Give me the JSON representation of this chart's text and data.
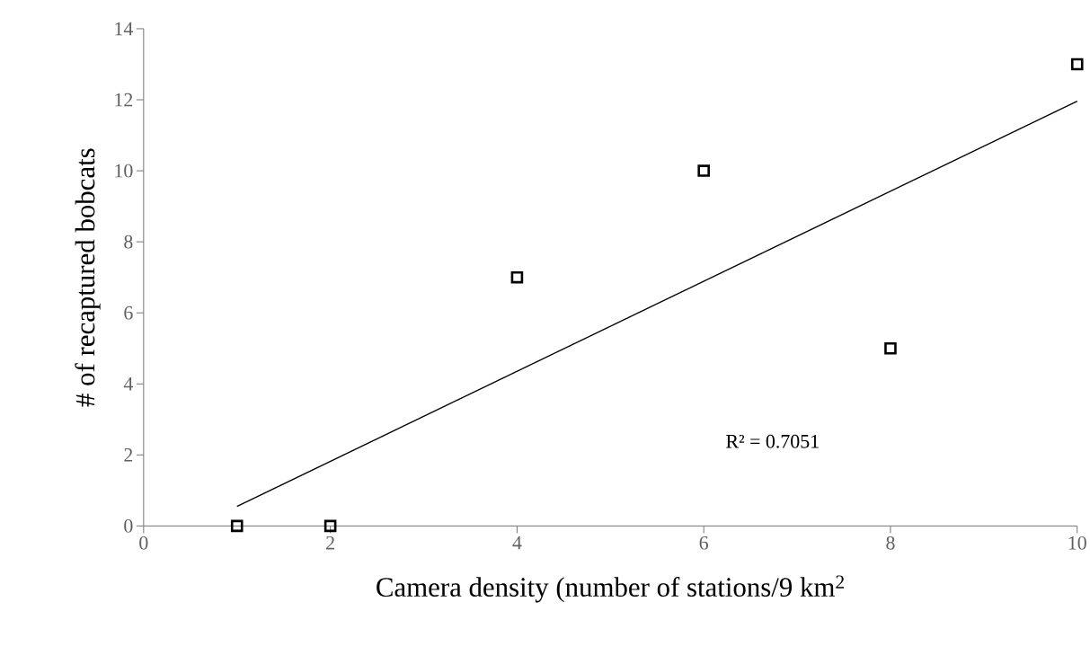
{
  "chart_data": {
    "type": "scatter",
    "xlabel": "Camera density (number of stations/9 km$^{2}$",
    "ylabel": "# of recaptured bobcats",
    "x": [
      1,
      2,
      4,
      6,
      8,
      10
    ],
    "series": [
      {
        "color": "#000000",
        "marker": "square",
        "values": [
          0,
          0,
          7,
          10,
          5,
          13
        ]
      },
      {
        "type": "line",
        "color": "#000000",
        "marker": "none",
        "x": [
          1,
          10
        ],
        "values": [
          0.55,
          11.96
        ]
      }
    ],
    "xlim": [
      0,
      10
    ],
    "xticks": [
      0,
      2,
      4,
      6,
      8,
      10
    ],
    "ylim": [
      0,
      14
    ],
    "yticks": [
      0,
      2,
      4,
      6,
      8,
      10,
      12,
      14
    ],
    "grid": false,
    "annotations": [
      "R² = 0.7051"
    ]
  }
}
